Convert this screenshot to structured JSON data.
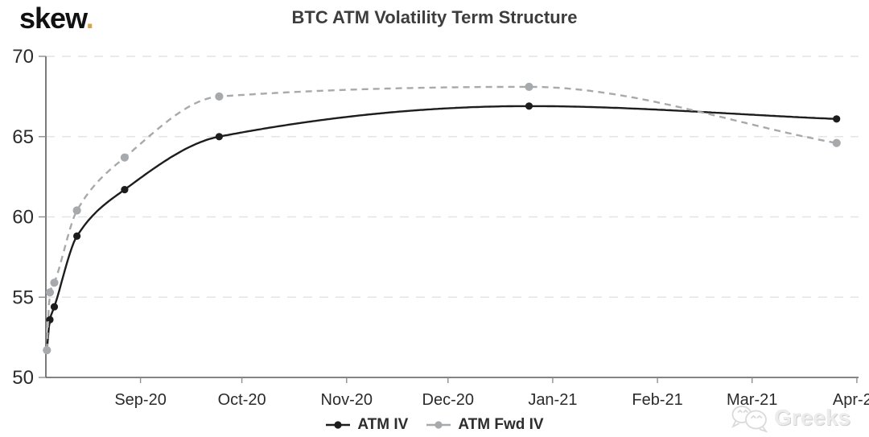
{
  "header": {
    "logo_text": "skew",
    "logo_dot": ".",
    "logo_dot_color": "#d7a44a",
    "title": "BTC ATM Volatility Term Structure"
  },
  "chart_data": {
    "type": "line",
    "title": "BTC ATM Volatility Term Structure",
    "x_axis_note": "time axis of option expiries, ~Aug-2020 through Apr-2021; day 0 = left edge of axis",
    "x_domain_days": [
      0,
      240.5
    ],
    "x_ticks": [
      {
        "label": "Sep-20",
        "day": 28
      },
      {
        "label": "Oct-20",
        "day": 58
      },
      {
        "label": "Nov-20",
        "day": 89
      },
      {
        "label": "Dec-20",
        "day": 119
      },
      {
        "label": "Jan-21",
        "day": 150
      },
      {
        "label": "Feb-21",
        "day": 181
      },
      {
        "label": "Mar-21",
        "day": 209
      },
      {
        "label": "Apr-21",
        "day": 240
      }
    ],
    "ylim": [
      50,
      70
    ],
    "y_ticks": [
      50,
      55,
      60,
      65,
      70
    ],
    "grid": "horizontal dashed gridlines at y ticks (except baseline)",
    "legend_position": "bottom-center",
    "x_days": [
      0.3,
      1.2,
      2.5,
      9.2,
      23.3,
      51.3,
      143,
      234
    ],
    "series": [
      {
        "name": "ATM IV",
        "color": "#1d1d1d",
        "line_style": "solid",
        "marker": "circle",
        "values": [
          51.7,
          53.6,
          54.4,
          58.8,
          61.7,
          65.0,
          66.9,
          66.1
        ]
      },
      {
        "name": "ATM Fwd IV",
        "color": "#a7aaac",
        "line_style": "dashed",
        "marker": "circle",
        "values": [
          51.7,
          55.3,
          55.9,
          60.4,
          63.7,
          67.5,
          68.1,
          64.6
        ]
      }
    ],
    "colors": {
      "grid": "#e4e4e4",
      "axis": "#5a5a5a",
      "tick": "#8f8f8f",
      "label": "#2b2b2b"
    }
  },
  "watermark": {
    "text": "Greeks"
  }
}
